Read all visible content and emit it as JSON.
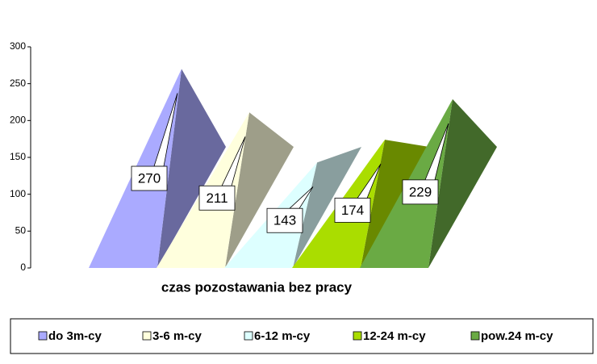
{
  "chart_data": {
    "type": "pyramid",
    "x_label": "czas pozostawania bez pracy",
    "ylim": [
      0,
      300
    ],
    "yticks": [
      0,
      50,
      100,
      150,
      200,
      250,
      300
    ],
    "series": [
      {
        "name": "do 3m-cy",
        "color": "#aaaaff",
        "values": [
          270
        ]
      },
      {
        "name": "3-6 m-cy",
        "color": "#ffffdd",
        "values": [
          211
        ]
      },
      {
        "name": "6-12 m-cy",
        "color": "#ddffff",
        "values": [
          143
        ]
      },
      {
        "name": "12-24 m-cy",
        "color": "#aadd00",
        "values": [
          174
        ]
      },
      {
        "name": "pow.24 m-cy",
        "color": "#6aaa44",
        "values": [
          229
        ]
      }
    ]
  }
}
